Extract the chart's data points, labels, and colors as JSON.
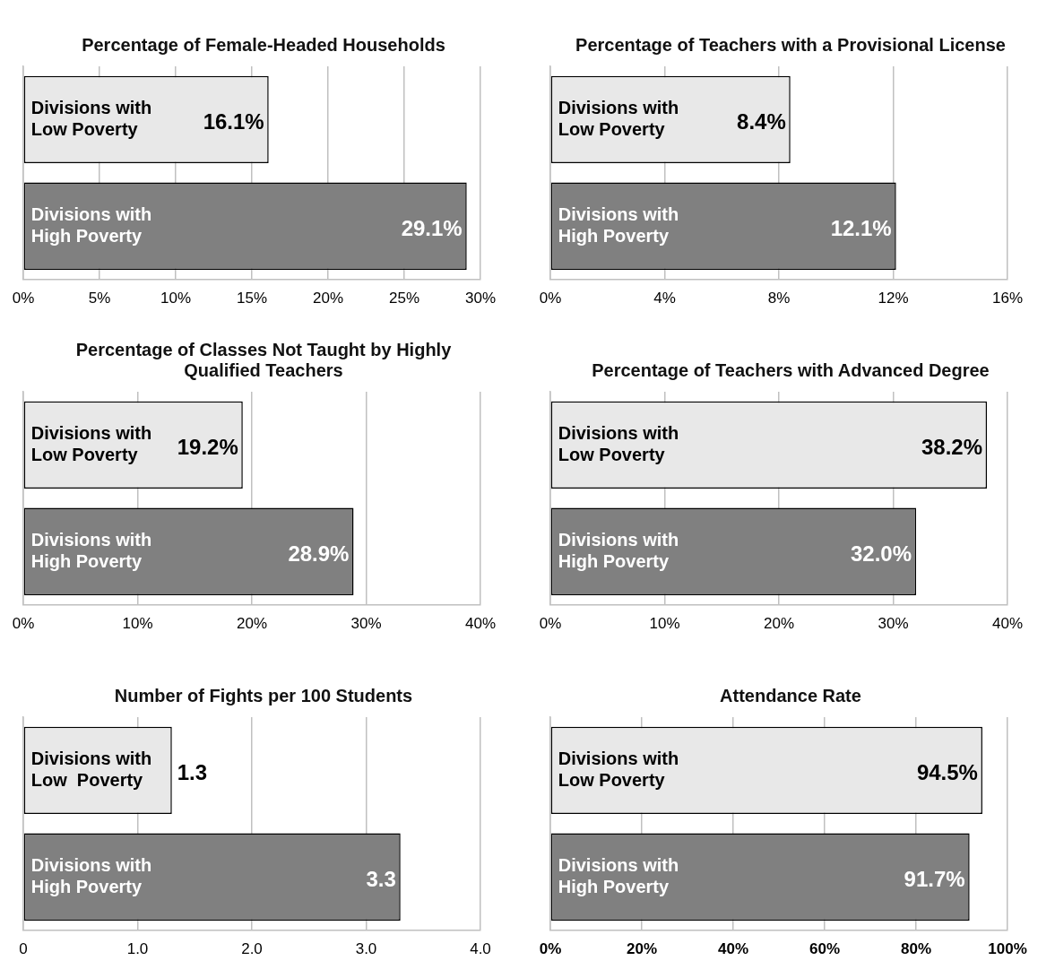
{
  "chart_data": [
    {
      "type": "bar",
      "orientation": "horizontal",
      "title": "Percentage of Female-Headed Households",
      "categories": [
        "Divisions with Low Poverty",
        "Divisions with High Poverty"
      ],
      "values": [
        16.1,
        29.1
      ],
      "value_labels": [
        "16.1%",
        "29.1%"
      ],
      "colors": [
        "#e8e8e8",
        "#808080"
      ],
      "xlim": [
        0,
        30
      ],
      "xticks": [
        {
          "value": 0,
          "label": "0%"
        },
        {
          "value": 5,
          "label": "5%"
        },
        {
          "value": 10,
          "label": "10%"
        },
        {
          "value": 15,
          "label": "15%"
        },
        {
          "value": 20,
          "label": "20%"
        },
        {
          "value": 25,
          "label": "25%"
        },
        {
          "value": 30,
          "label": "30%"
        }
      ],
      "grid": "x",
      "legend": false
    },
    {
      "type": "bar",
      "orientation": "horizontal",
      "title": "Percentage of Teachers with a Provisional License",
      "categories": [
        "Divisions with Low Poverty",
        "Divisions with High Poverty"
      ],
      "values": [
        8.4,
        12.1
      ],
      "value_labels": [
        "8.4%",
        "12.1%"
      ],
      "colors": [
        "#e8e8e8",
        "#808080"
      ],
      "xlim": [
        0,
        16
      ],
      "xticks": [
        {
          "value": 0,
          "label": "0%"
        },
        {
          "value": 4,
          "label": "4%"
        },
        {
          "value": 8,
          "label": "8%"
        },
        {
          "value": 12,
          "label": "12%"
        },
        {
          "value": 16,
          "label": "16%"
        }
      ],
      "grid": "x",
      "legend": false
    },
    {
      "type": "bar",
      "orientation": "horizontal",
      "title": "Percentage of Classes Not Taught by Highly Qualified Teachers",
      "categories": [
        "Divisions with Low Poverty",
        "Divisions with High Poverty"
      ],
      "values": [
        19.2,
        28.9
      ],
      "value_labels": [
        "19.2%",
        "28.9%"
      ],
      "colors": [
        "#e8e8e8",
        "#808080"
      ],
      "xlim": [
        0,
        40
      ],
      "xticks": [
        {
          "value": 0,
          "label": "0%"
        },
        {
          "value": 10,
          "label": "10%"
        },
        {
          "value": 20,
          "label": "20%"
        },
        {
          "value": 30,
          "label": "30%"
        },
        {
          "value": 40,
          "label": "40%"
        }
      ],
      "grid": "x",
      "legend": false
    },
    {
      "type": "bar",
      "orientation": "horizontal",
      "title": "Percentage of Teachers with Advanced Degree",
      "categories": [
        "Divisions with Low Poverty",
        "Divisions with High Poverty"
      ],
      "values": [
        38.2,
        32.0
      ],
      "value_labels": [
        "38.2%",
        "32.0%"
      ],
      "colors": [
        "#e8e8e8",
        "#808080"
      ],
      "xlim": [
        0,
        40
      ],
      "xticks": [
        {
          "value": 0,
          "label": "0%"
        },
        {
          "value": 10,
          "label": "10%"
        },
        {
          "value": 20,
          "label": "20%"
        },
        {
          "value": 30,
          "label": "30%"
        },
        {
          "value": 40,
          "label": "40%"
        }
      ],
      "grid": "x",
      "legend": false
    },
    {
      "type": "bar",
      "orientation": "horizontal",
      "title": "Number of Fights per 100 Students",
      "categories": [
        "Divisions with Low  Poverty",
        "Divisions with High Poverty"
      ],
      "values": [
        1.3,
        3.3
      ],
      "value_labels": [
        "1.3",
        "3.3"
      ],
      "colors": [
        "#e8e8e8",
        "#808080"
      ],
      "xlim": [
        0,
        4
      ],
      "xticks": [
        0,
        {
          "value": 1,
          "label": "1.0"
        },
        {
          "value": 2,
          "label": "2.0"
        },
        {
          "value": 3,
          "label": "3.0"
        },
        {
          "value": 4,
          "label": "4.0"
        }
      ],
      "grid": "x",
      "legend": false
    },
    {
      "type": "bar",
      "orientation": "horizontal",
      "title": "Attendance Rate",
      "categories": [
        "Divisions with Low Poverty",
        "Divisions with High Poverty"
      ],
      "values": [
        94.5,
        91.7
      ],
      "value_labels": [
        "94.5%",
        "91.7%"
      ],
      "colors": [
        "#e8e8e8",
        "#808080"
      ],
      "xlim": [
        0,
        100
      ],
      "xticks": [
        {
          "value": 0,
          "label": "0%"
        },
        {
          "value": 20,
          "label": "20%"
        },
        {
          "value": 40,
          "label": "40%"
        },
        {
          "value": 60,
          "label": "60%"
        },
        {
          "value": 80,
          "label": "80%"
        },
        {
          "value": 100,
          "label": "100%"
        }
      ],
      "grid": "x",
      "legend": false
    }
  ]
}
